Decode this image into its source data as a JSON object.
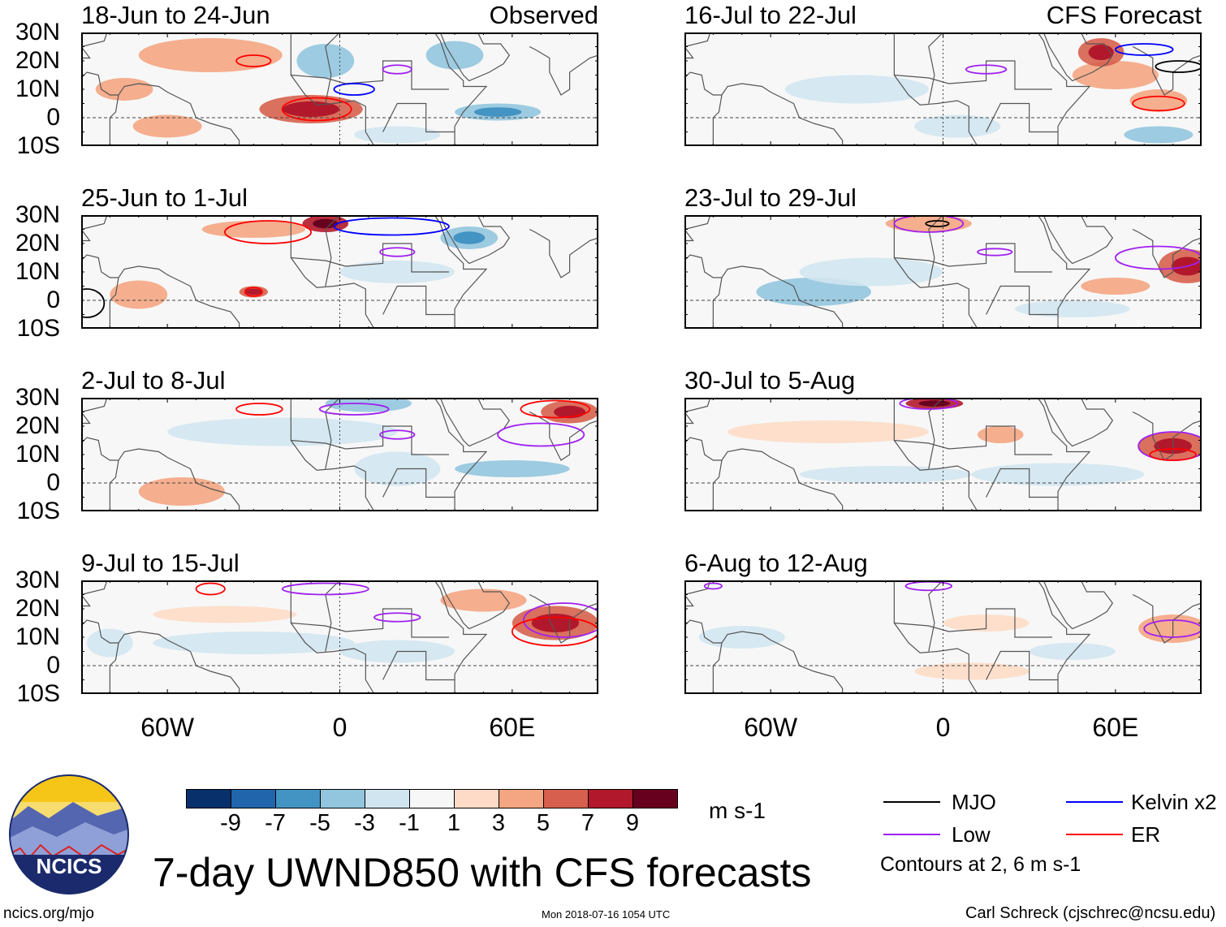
{
  "title": "7-day UWND850 with CFS forecasts",
  "column_headers": {
    "observed": "Observed",
    "forecast": "CFS Forecast"
  },
  "lat_labels": [
    "30N",
    "20N",
    "10N",
    "0",
    "10S"
  ],
  "lon_labels": [
    "60W",
    "0",
    "60E"
  ],
  "colorbar": {
    "unit": "m s-1",
    "ticks": [
      "-9",
      "-7",
      "-5",
      "-3",
      "-1",
      "1",
      "3",
      "5",
      "7",
      "9"
    ],
    "colors": [
      "#08306b",
      "#2166ac",
      "#4393c3",
      "#92c5de",
      "#d1e5f0",
      "#f7f7f7",
      "#fddbc7",
      "#f4a582",
      "#d6604d",
      "#b2182b",
      "#67001f"
    ]
  },
  "legend": {
    "items": [
      {
        "label": "MJO",
        "color": "#000000"
      },
      {
        "label": "Kelvin x2",
        "color": "#0000ff"
      },
      {
        "label": "Low",
        "color": "#a020f0"
      },
      {
        "label": "ER",
        "color": "#ff0000"
      }
    ],
    "contours_note": "Contours at 2, 6 m s-1"
  },
  "footer": {
    "url": "ncics.org/mjo",
    "timestamp": "Mon 2018-07-16 1054 UTC",
    "credit": "Carl Schreck (cjschrec@ncsu.edu)",
    "logo_text": "NCICS"
  },
  "panels": [
    {
      "title": "18-Jun to 24-Jun",
      "column": "observed",
      "features": [
        {
          "lon": -10,
          "lat": 3,
          "rx": 18,
          "ry": 5,
          "v": 6
        },
        {
          "lon": -45,
          "lat": 22,
          "rx": 25,
          "ry": 6,
          "v": 3
        },
        {
          "lon": -75,
          "lat": 10,
          "rx": 10,
          "ry": 4,
          "v": 4
        },
        {
          "lon": -5,
          "lat": 20,
          "rx": 10,
          "ry": 6,
          "v": -4
        },
        {
          "lon": 55,
          "lat": 2,
          "rx": 15,
          "ry": 3,
          "v": -5
        },
        {
          "lon": 20,
          "lat": -6,
          "rx": 15,
          "ry": 3,
          "v": -3
        },
        {
          "lon": 40,
          "lat": 22,
          "rx": 10,
          "ry": 5,
          "v": -4
        },
        {
          "lon": -60,
          "lat": -3,
          "rx": 12,
          "ry": 4,
          "v": 3
        }
      ],
      "contours": [
        {
          "type": "ER",
          "lon": -8,
          "lat": 3,
          "rx": 12,
          "ry": 4
        },
        {
          "type": "Kelvin x2",
          "lon": 5,
          "lat": 10,
          "rx": 7,
          "ry": 2
        },
        {
          "type": "Low",
          "lon": 20,
          "lat": 17,
          "rx": 5,
          "ry": 1.5
        },
        {
          "type": "ER",
          "lon": -30,
          "lat": 20,
          "rx": 6,
          "ry": 2
        }
      ]
    },
    {
      "title": "16-Jul to 22-Jul",
      "column": "forecast",
      "features": [
        {
          "lon": 60,
          "lat": 15,
          "rx": 15,
          "ry": 5,
          "v": 3
        },
        {
          "lon": 75,
          "lat": 6,
          "rx": 10,
          "ry": 4,
          "v": 4
        },
        {
          "lon": -30,
          "lat": 10,
          "rx": 25,
          "ry": 5,
          "v": -2
        },
        {
          "lon": 5,
          "lat": -3,
          "rx": 15,
          "ry": 4,
          "v": -3
        },
        {
          "lon": 75,
          "lat": -6,
          "rx": 12,
          "ry": 3,
          "v": -4
        },
        {
          "lon": 55,
          "lat": 23,
          "rx": 8,
          "ry": 5,
          "v": 5
        }
      ],
      "contours": [
        {
          "type": "ER",
          "lon": 75,
          "lat": 5,
          "rx": 9,
          "ry": 2.5
        },
        {
          "type": "Low",
          "lon": 15,
          "lat": 17,
          "rx": 7,
          "ry": 1.5
        },
        {
          "type": "Kelvin x2",
          "lon": 70,
          "lat": 24,
          "rx": 10,
          "ry": 2
        },
        {
          "type": "MJO",
          "lon": 82,
          "lat": 18,
          "rx": 8,
          "ry": 2
        }
      ]
    },
    {
      "title": "25-Jun to 1-Jul",
      "column": "observed",
      "features": [
        {
          "lon": -5,
          "lat": 27,
          "rx": 8,
          "ry": 3,
          "v": 7
        },
        {
          "lon": -30,
          "lat": 25,
          "rx": 18,
          "ry": 3,
          "v": 3
        },
        {
          "lon": -30,
          "lat": 3,
          "rx": 5,
          "ry": 2,
          "v": 5
        },
        {
          "lon": 20,
          "lat": 10,
          "rx": 20,
          "ry": 4,
          "v": -3
        },
        {
          "lon": 45,
          "lat": 22,
          "rx": 10,
          "ry": 4,
          "v": -5
        },
        {
          "lon": -70,
          "lat": 2,
          "rx": 10,
          "ry": 5,
          "v": 3
        }
      ],
      "contours": [
        {
          "type": "ER",
          "lon": -25,
          "lat": 24,
          "rx": 15,
          "ry": 4
        },
        {
          "type": "Kelvin x2",
          "lon": 18,
          "lat": 26,
          "rx": 20,
          "ry": 3
        },
        {
          "type": "Low",
          "lon": 20,
          "lat": 17,
          "rx": 6,
          "ry": 1.5
        },
        {
          "type": "ER",
          "lon": -30,
          "lat": 3,
          "rx": 3,
          "ry": 1.5
        },
        {
          "type": "MJO",
          "lon": -88,
          "lat": -1,
          "rx": 6,
          "ry": 5
        }
      ]
    },
    {
      "title": "23-Jul to 29-Jul",
      "column": "forecast",
      "features": [
        {
          "lon": -45,
          "lat": 3,
          "rx": 20,
          "ry": 5,
          "v": -4
        },
        {
          "lon": -25,
          "lat": 10,
          "rx": 25,
          "ry": 5,
          "v": -2
        },
        {
          "lon": 85,
          "lat": 12,
          "rx": 10,
          "ry": 6,
          "v": 6
        },
        {
          "lon": 60,
          "lat": 5,
          "rx": 12,
          "ry": 3,
          "v": 3
        },
        {
          "lon": -5,
          "lat": 27,
          "rx": 15,
          "ry": 3,
          "v": 3
        },
        {
          "lon": 45,
          "lat": -3,
          "rx": 20,
          "ry": 3,
          "v": -2
        }
      ],
      "contours": [
        {
          "type": "Low",
          "lon": -5,
          "lat": 27,
          "rx": 12,
          "ry": 3
        },
        {
          "type": "Low",
          "lon": 75,
          "lat": 15,
          "rx": 15,
          "ry": 4
        },
        {
          "type": "MJO",
          "lon": -2,
          "lat": 27,
          "rx": 4,
          "ry": 1
        },
        {
          "type": "Low",
          "lon": 18,
          "lat": 17,
          "rx": 6,
          "ry": 1.2
        }
      ]
    },
    {
      "title": "2-Jul to 8-Jul",
      "column": "observed",
      "features": [
        {
          "lon": -20,
          "lat": 18,
          "rx": 40,
          "ry": 5,
          "v": -3
        },
        {
          "lon": 10,
          "lat": 28,
          "rx": 15,
          "ry": 3,
          "v": -4
        },
        {
          "lon": 20,
          "lat": 5,
          "rx": 15,
          "ry": 6,
          "v": -3
        },
        {
          "lon": -55,
          "lat": -3,
          "rx": 15,
          "ry": 5,
          "v": 3
        },
        {
          "lon": 60,
          "lat": 5,
          "rx": 20,
          "ry": 3,
          "v": -4
        },
        {
          "lon": 80,
          "lat": 25,
          "rx": 10,
          "ry": 4,
          "v": 5
        }
      ],
      "contours": [
        {
          "type": "ER",
          "lon": -28,
          "lat": 26,
          "rx": 8,
          "ry": 2
        },
        {
          "type": "Low",
          "lon": 5,
          "lat": 26,
          "rx": 12,
          "ry": 2
        },
        {
          "type": "Low",
          "lon": 20,
          "lat": 17,
          "rx": 6,
          "ry": 1.5
        },
        {
          "type": "ER",
          "lon": 75,
          "lat": 26,
          "rx": 12,
          "ry": 3
        },
        {
          "type": "Low",
          "lon": 70,
          "lat": 17,
          "rx": 15,
          "ry": 4
        }
      ]
    },
    {
      "title": "30-Jul to 5-Aug",
      "column": "forecast",
      "features": [
        {
          "lon": -3,
          "lat": 28,
          "rx": 10,
          "ry": 2,
          "v": 7
        },
        {
          "lon": -40,
          "lat": 18,
          "rx": 35,
          "ry": 4,
          "v": 2
        },
        {
          "lon": 80,
          "lat": 13,
          "rx": 12,
          "ry": 5,
          "v": 5
        },
        {
          "lon": 20,
          "lat": 17,
          "rx": 8,
          "ry": 3,
          "v": 4
        },
        {
          "lon": 40,
          "lat": 3,
          "rx": 30,
          "ry": 4,
          "v": -2
        },
        {
          "lon": -20,
          "lat": 3,
          "rx": 30,
          "ry": 3,
          "v": -2
        }
      ],
      "contours": [
        {
          "type": "Low",
          "lon": -5,
          "lat": 28,
          "rx": 10,
          "ry": 2
        },
        {
          "type": "Low",
          "lon": 80,
          "lat": 13,
          "rx": 12,
          "ry": 5
        },
        {
          "type": "ER",
          "lon": 80,
          "lat": 10,
          "rx": 8,
          "ry": 2
        }
      ]
    },
    {
      "title": "9-Jul to 15-Jul",
      "column": "observed",
      "features": [
        {
          "lon": 75,
          "lat": 15,
          "rx": 15,
          "ry": 6,
          "v": 6
        },
        {
          "lon": 50,
          "lat": 23,
          "rx": 15,
          "ry": 4,
          "v": 3
        },
        {
          "lon": -30,
          "lat": 8,
          "rx": 35,
          "ry": 4,
          "v": -3
        },
        {
          "lon": 20,
          "lat": 5,
          "rx": 20,
          "ry": 4,
          "v": -3
        },
        {
          "lon": -40,
          "lat": 18,
          "rx": 25,
          "ry": 3,
          "v": 2
        },
        {
          "lon": -80,
          "lat": 8,
          "rx": 8,
          "ry": 5,
          "v": -3
        }
      ],
      "contours": [
        {
          "type": "ER",
          "lon": -45,
          "lat": 27,
          "rx": 5,
          "ry": 2
        },
        {
          "type": "Low",
          "lon": -5,
          "lat": 27,
          "rx": 15,
          "ry": 2
        },
        {
          "type": "Low",
          "lon": 20,
          "lat": 17,
          "rx": 8,
          "ry": 1.5
        },
        {
          "type": "Low",
          "lon": 78,
          "lat": 16,
          "rx": 14,
          "ry": 6
        },
        {
          "type": "ER",
          "lon": 75,
          "lat": 12,
          "rx": 15,
          "ry": 5
        }
      ]
    },
    {
      "title": "6-Aug to 12-Aug",
      "column": "forecast",
      "features": [
        {
          "lon": 80,
          "lat": 13,
          "rx": 12,
          "ry": 5,
          "v": 3
        },
        {
          "lon": -70,
          "lat": 10,
          "rx": 15,
          "ry": 4,
          "v": -2
        },
        {
          "lon": 15,
          "lat": 15,
          "rx": 15,
          "ry": 3,
          "v": 2
        },
        {
          "lon": 10,
          "lat": -2,
          "rx": 20,
          "ry": 3,
          "v": 2
        },
        {
          "lon": 45,
          "lat": 5,
          "rx": 15,
          "ry": 3,
          "v": -2
        }
      ],
      "contours": [
        {
          "type": "Low",
          "lon": -5,
          "lat": 28,
          "rx": 8,
          "ry": 1.5
        },
        {
          "type": "Low",
          "lon": 80,
          "lat": 13,
          "rx": 10,
          "ry": 3
        },
        {
          "type": "Low",
          "lon": -80,
          "lat": 28,
          "rx": 3,
          "ry": 1
        }
      ]
    }
  ]
}
